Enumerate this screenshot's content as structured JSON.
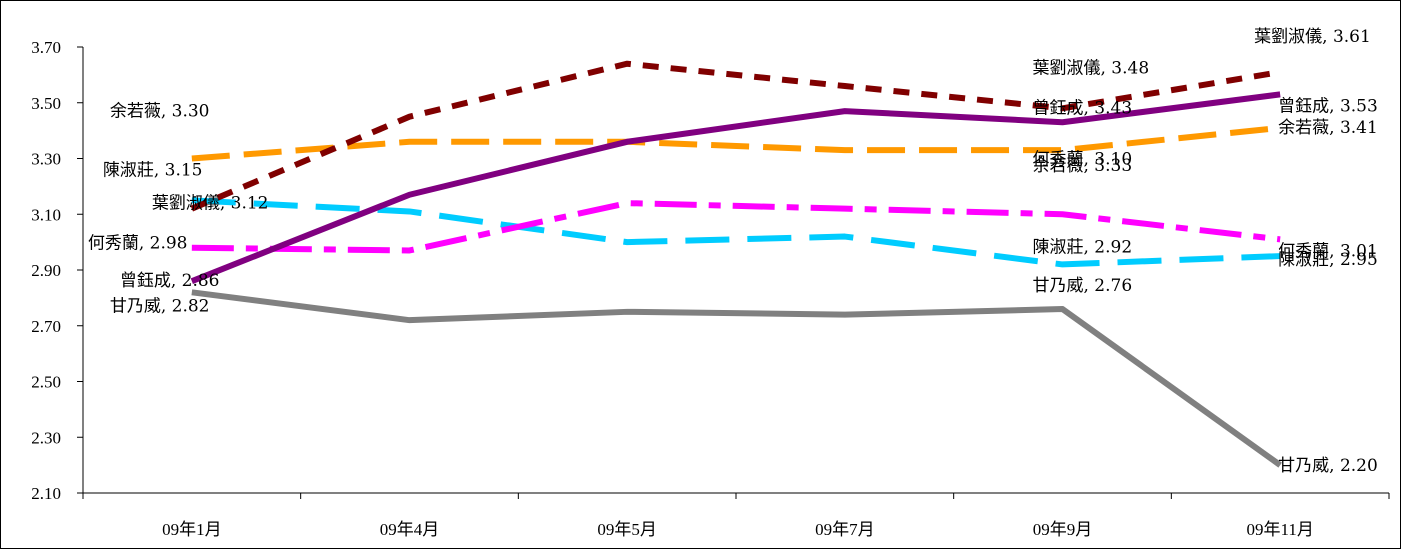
{
  "chart_data": {
    "type": "line",
    "title": "",
    "xlabel": "",
    "ylabel": "",
    "categories": [
      "09年1月",
      "09年4月",
      "09年5月",
      "09年7月",
      "09年9月",
      "09年11月"
    ],
    "ylim": [
      2.1,
      3.7
    ],
    "yticks": [
      "3.70",
      "3.50",
      "3.30",
      "3.10",
      "2.90",
      "2.70",
      "2.50",
      "2.30",
      "2.10"
    ],
    "grid": false,
    "legend": "none",
    "series": [
      {
        "name": "葉劉淑儀",
        "values": [
          3.12,
          3.45,
          3.64,
          3.56,
          3.48,
          3.61
        ],
        "color": "#800000",
        "dash": "dotted",
        "labels": [
          "葉劉淑儀, 3.12",
          "",
          "",
          "",
          "葉劉淑儀, 3.48",
          "葉劉淑儀, 3.61"
        ]
      },
      {
        "name": "曾鈺成",
        "values": [
          2.86,
          3.17,
          3.36,
          3.47,
          3.43,
          3.53
        ],
        "color": "#800080",
        "dash": "solid",
        "labels": [
          "曾鈺成, 2.86",
          "",
          "",
          "",
          "曾鈺成, 3.43",
          "曾鈺成, 3.53"
        ]
      },
      {
        "name": "余若薇",
        "values": [
          3.3,
          3.36,
          3.36,
          3.33,
          3.33,
          3.41
        ],
        "color": "#ff9900",
        "dash": "dashed",
        "labels": [
          "余若薇, 3.30",
          "",
          "",
          "",
          "余若薇, 3.33",
          "余若薇, 3.41"
        ]
      },
      {
        "name": "何秀蘭",
        "values": [
          2.98,
          2.97,
          3.14,
          3.12,
          3.1,
          3.01
        ],
        "color": "#ff00ff",
        "dash": "dashdot",
        "labels": [
          "何秀蘭, 2.98",
          "",
          "",
          "",
          "何秀蘭, 3.10",
          "何秀蘭, 3.01"
        ]
      },
      {
        "name": "陳淑莊",
        "values": [
          3.15,
          3.11,
          3.0,
          3.02,
          2.92,
          2.95
        ],
        "color": "#00ccff",
        "dash": "longdash",
        "labels": [
          "陳淑莊, 3.15",
          "",
          "",
          "",
          "陳淑莊, 2.92",
          "陳淑莊, 2.95"
        ]
      },
      {
        "name": "甘乃威",
        "values": [
          2.82,
          2.72,
          2.75,
          2.74,
          2.76,
          2.2
        ],
        "color": "#808080",
        "dash": "solid",
        "labels": [
          "甘乃威, 2.82",
          "",
          "",
          "",
          "甘乃威, 2.76",
          "甘乃威, 2.20"
        ]
      }
    ]
  }
}
